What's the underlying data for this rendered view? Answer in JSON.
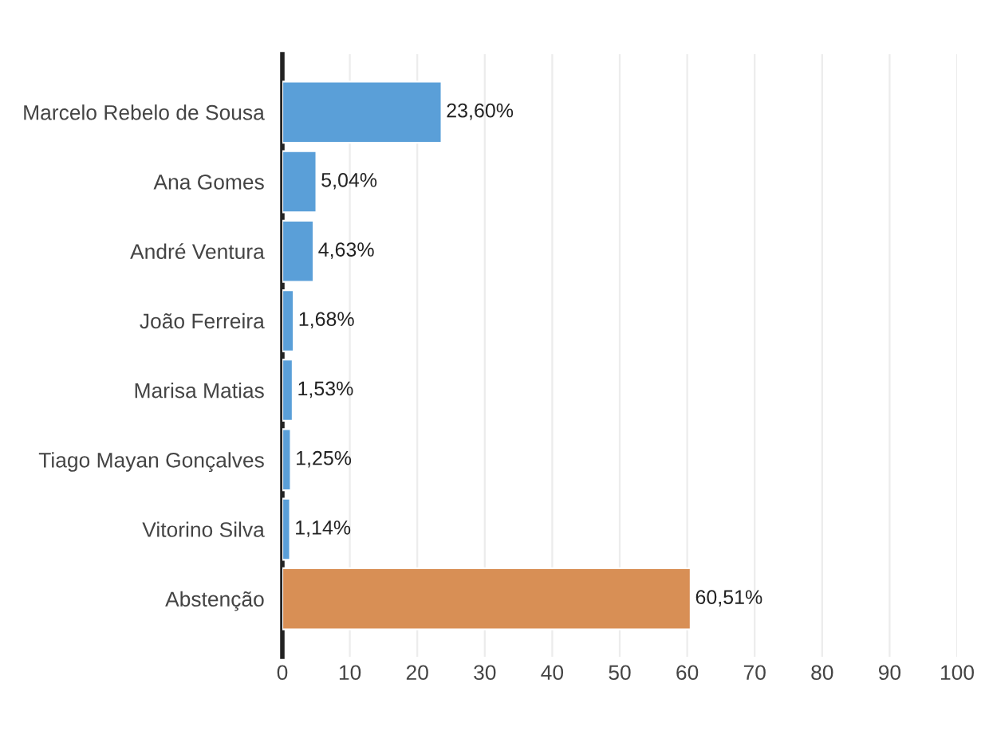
{
  "chart_data": {
    "type": "bar",
    "orientation": "horizontal",
    "categories": [
      "Marcelo Rebelo de Sousa",
      "Ana Gomes",
      "André Ventura",
      "João Ferreira",
      "Marisa Matias",
      "Tiago Mayan Gonçalves",
      "Vitorino Silva",
      "Abstenção"
    ],
    "values": [
      23.6,
      5.04,
      4.63,
      1.68,
      1.53,
      1.25,
      1.14,
      60.51
    ],
    "colors": [
      "#5a9fd8",
      "#5a9fd8",
      "#5a9fd8",
      "#5a9fd8",
      "#5a9fd8",
      "#5a9fd8",
      "#5a9fd8",
      "#d88f55"
    ],
    "value_labels": [
      "23,60%",
      "5,04%",
      "4,63%",
      "1,68%",
      "1,53%",
      "1,25%",
      "1,14%",
      "60,51%"
    ],
    "xlim": [
      0,
      100
    ],
    "xticks": [
      0,
      10,
      20,
      30,
      40,
      50,
      60,
      70,
      80,
      90,
      100
    ],
    "grid": "x",
    "legend": false
  }
}
